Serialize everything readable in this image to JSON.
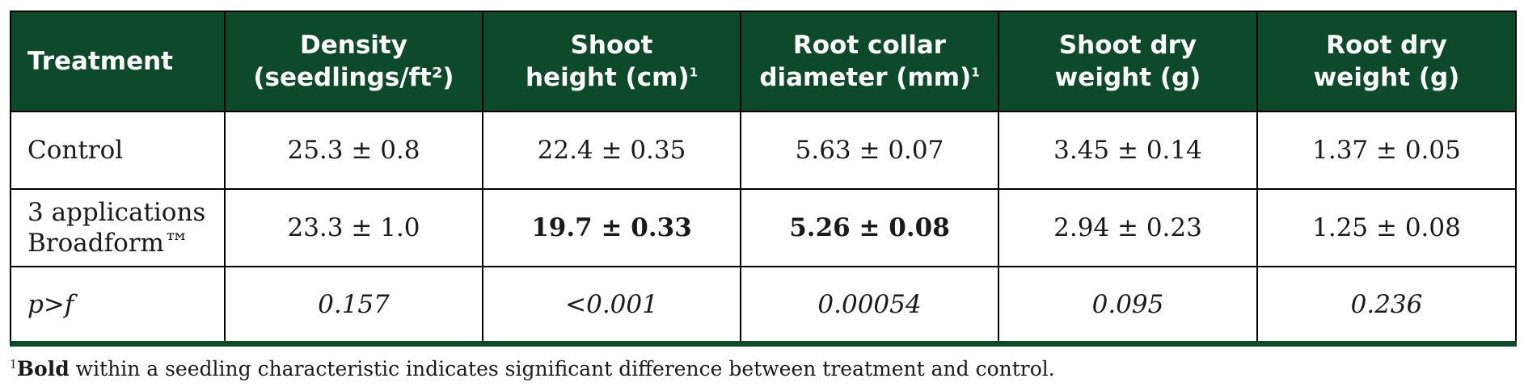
{
  "table": {
    "headers": [
      {
        "line1": "Treatment",
        "line2": "",
        "sup": ""
      },
      {
        "line1": "Density",
        "line2": "(seedlings/ft²)",
        "sup": ""
      },
      {
        "line1": "Shoot",
        "line2": "height (cm)",
        "sup": "1"
      },
      {
        "line1": "Root collar",
        "line2": "diameter (mm)",
        "sup": "1"
      },
      {
        "line1": "Shoot dry",
        "line2": "weight (g)",
        "sup": ""
      },
      {
        "line1": "Root dry",
        "line2": "weight (g)",
        "sup": ""
      }
    ],
    "rows": [
      {
        "treatment": "Control",
        "treatment_line2": "",
        "cells": [
          "25.3 ± 0.8",
          "22.4 ± 0.35",
          "5.63 ± 0.07",
          "3.45 ± 0.14",
          "1.37 ± 0.05"
        ],
        "bold": [
          false,
          false,
          false,
          false,
          false
        ]
      },
      {
        "treatment": "3 applications",
        "treatment_line2": "Broadform™",
        "cells": [
          "23.3 ± 1.0",
          "19.7 ± 0.33",
          "5.26 ± 0.08",
          "2.94 ± 0.23",
          "1.25 ± 0.08"
        ],
        "bold": [
          false,
          true,
          true,
          false,
          false
        ]
      },
      {
        "treatment": "p>f",
        "treatment_line2": "",
        "cells": [
          "0.157",
          "<0.001",
          "0.00054",
          "0.095",
          "0.236"
        ],
        "bold": [
          false,
          false,
          false,
          false,
          false
        ]
      }
    ]
  },
  "footnote": {
    "marker": "1",
    "bold_word": "Bold",
    "rest": " within a seedling characteristic indicates significant difference between treatment and control."
  },
  "colors": {
    "header_bg": "#0d4a2a",
    "header_text": "#ffffff"
  }
}
